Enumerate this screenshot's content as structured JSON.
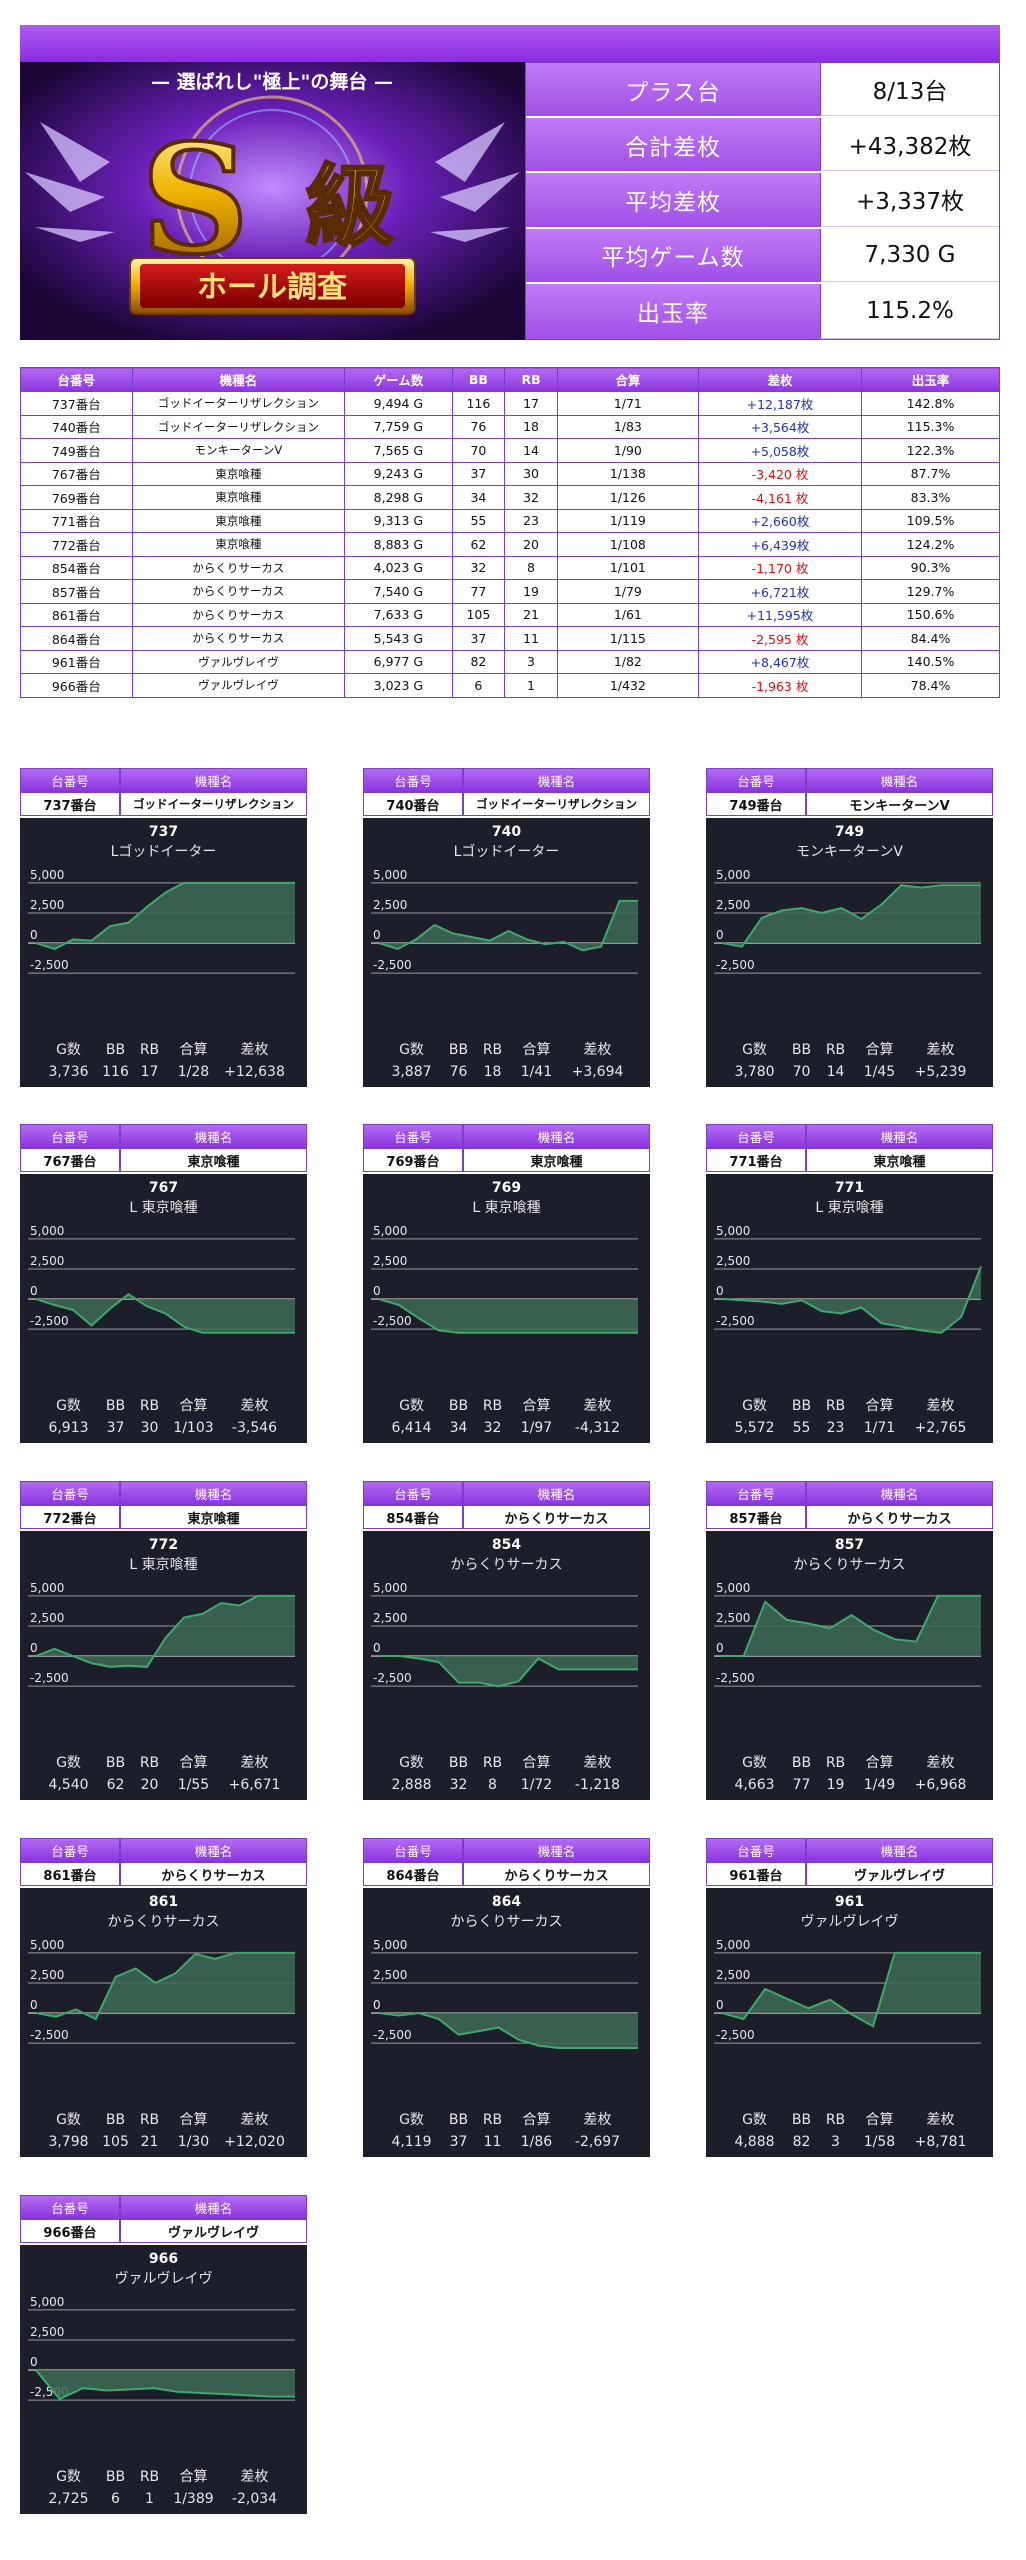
{
  "banner": {
    "subtitle": "— 選ばれし\"極上\"の舞台 —",
    "big_letter": "S",
    "kyu": "級",
    "ribbon": "ホール調査"
  },
  "summary": [
    {
      "label": "プラス台",
      "value": "8/13台"
    },
    {
      "label": "合計差枚",
      "value": "+43,382枚"
    },
    {
      "label": "平均差枚",
      "value": "+3,337枚"
    },
    {
      "label": "平均ゲーム数",
      "value": "7,330 G"
    },
    {
      "label": "出玉率",
      "value": "115.2%"
    }
  ],
  "table": {
    "headers": [
      "台番号",
      "機種名",
      "ゲーム数",
      "BB",
      "RB",
      "合算",
      "差枚",
      "出玉率"
    ],
    "rows": [
      [
        "737番台",
        "ゴッドイーターリザレクション",
        "9,494 G",
        "116",
        "17",
        "1/71",
        "+12,187枚",
        "142.8%"
      ],
      [
        "740番台",
        "ゴッドイーターリザレクション",
        "7,759 G",
        "76",
        "18",
        "1/83",
        "+3,564枚",
        "115.3%"
      ],
      [
        "749番台",
        "モンキーターンV",
        "7,565 G",
        "70",
        "14",
        "1/90",
        "+5,058枚",
        "122.3%"
      ],
      [
        "767番台",
        "東京喰種",
        "9,243 G",
        "37",
        "30",
        "1/138",
        "-3,420 枚",
        "87.7%"
      ],
      [
        "769番台",
        "東京喰種",
        "8,298 G",
        "34",
        "32",
        "1/126",
        "-4,161 枚",
        "83.3%"
      ],
      [
        "771番台",
        "東京喰種",
        "9,313 G",
        "55",
        "23",
        "1/119",
        "+2,660枚",
        "109.5%"
      ],
      [
        "772番台",
        "東京喰種",
        "8,883 G",
        "62",
        "20",
        "1/108",
        "+6,439枚",
        "124.2%"
      ],
      [
        "854番台",
        "からくりサーカス",
        "4,023 G",
        "32",
        "8",
        "1/101",
        "-1,170 枚",
        "90.3%"
      ],
      [
        "857番台",
        "からくりサーカス",
        "7,540 G",
        "77",
        "19",
        "1/79",
        "+6,721枚",
        "129.7%"
      ],
      [
        "861番台",
        "からくりサーカス",
        "7,633 G",
        "105",
        "21",
        "1/61",
        "+11,595枚",
        "150.6%"
      ],
      [
        "864番台",
        "からくりサーカス",
        "5,543 G",
        "37",
        "11",
        "1/115",
        "-2,595 枚",
        "84.4%"
      ],
      [
        "961番台",
        "ヴァルヴレイヴ",
        "6,977 G",
        "82",
        "3",
        "1/82",
        "+8,467枚",
        "140.5%"
      ],
      [
        "966番台",
        "ヴァルヴレイヴ",
        "3,023 G",
        "6",
        "1",
        "1/432",
        "-1,963 枚",
        "78.4%"
      ]
    ]
  },
  "card_labels": {
    "unit_header": "台番号",
    "machine_header": "機種名",
    "foot_headers": [
      "G数",
      "BB",
      "RB",
      "合算",
      "差枚"
    ]
  },
  "colors": {
    "purple": "#8d36e0",
    "panel_bg": "#1c1f2a",
    "line": "#3fa86b",
    "fill": "#3e6b55",
    "positive": "#2233bb",
    "negative": "#dd1111"
  },
  "chart_data": [
    {
      "type": "area",
      "unit": "737番台",
      "machine": "ゴッドイーターリザレクション",
      "number": "737",
      "title": "Lゴッドイーター",
      "yticks": [
        "5,000",
        "2,500",
        "0",
        "-2,500"
      ],
      "ylim": [
        -2900,
        5400
      ],
      "values": [
        0,
        -500,
        300,
        200,
        1400,
        1700,
        3000,
        4200,
        5000,
        5000,
        5000,
        5000,
        5000,
        5000,
        5000
      ],
      "stats": [
        "3,736",
        "116",
        "17",
        "1/28",
        "+12,638"
      ]
    },
    {
      "type": "area",
      "unit": "740番台",
      "machine": "ゴッドイーターリザレクション",
      "number": "740",
      "title": "Lゴッドイーター",
      "yticks": [
        "5,000",
        "2,500",
        "0",
        "-2,500"
      ],
      "ylim": [
        -2900,
        5400
      ],
      "values": [
        0,
        -500,
        300,
        1500,
        800,
        500,
        200,
        1000,
        300,
        -100,
        100,
        -600,
        -300,
        3500,
        3500
      ],
      "stats": [
        "3,887",
        "76",
        "18",
        "1/41",
        "+3,694"
      ]
    },
    {
      "type": "area",
      "unit": "749番台",
      "machine": "モンキーターンV",
      "number": "749",
      "title": "モンキーターンV",
      "yticks": [
        "5,000",
        "2,500",
        "0",
        "-2,500"
      ],
      "ylim": [
        -2900,
        5400
      ],
      "values": [
        0,
        -300,
        2100,
        2700,
        2900,
        2500,
        2900,
        2000,
        3200,
        4800,
        4600,
        4800,
        4800,
        4800
      ],
      "stats": [
        "3,780",
        "70",
        "14",
        "1/45",
        "+5,239"
      ]
    },
    {
      "type": "area",
      "unit": "767番台",
      "machine": "東京喰種",
      "number": "767",
      "title": "L 東京喰種",
      "yticks": [
        "5,000",
        "2,500",
        "0",
        "-2,500"
      ],
      "ylim": [
        -2900,
        5400
      ],
      "values": [
        0,
        -500,
        -900,
        -2200,
        -800,
        400,
        -600,
        -1200,
        -2300,
        -2800,
        -2800,
        -2800,
        -2800,
        -2800,
        -2800
      ],
      "stats": [
        "6,913",
        "37",
        "30",
        "1/103",
        "-3,546"
      ]
    },
    {
      "type": "area",
      "unit": "769番台",
      "machine": "東京喰種",
      "number": "769",
      "title": "L 東京喰種",
      "yticks": [
        "5,000",
        "2,500",
        "0",
        "-2,500"
      ],
      "ylim": [
        -2900,
        5400
      ],
      "values": [
        0,
        -500,
        -1600,
        -2600,
        -2800,
        -2800,
        -2800,
        -2800,
        -2800,
        -2800,
        -2800,
        -2800,
        -2800,
        -2800
      ],
      "stats": [
        "6,414",
        "34",
        "32",
        "1/97",
        "-4,312"
      ]
    },
    {
      "type": "area",
      "unit": "771番台",
      "machine": "東京喰種",
      "number": "771",
      "title": "L 東京喰種",
      "yticks": [
        "5,000",
        "2,500",
        "0",
        "-2,500"
      ],
      "ylim": [
        -2900,
        5400
      ],
      "values": [
        0,
        -100,
        -200,
        -400,
        -100,
        -1000,
        -1200,
        -700,
        -2000,
        -2300,
        -2600,
        -2800,
        -1500,
        2700
      ],
      "stats": [
        "5,572",
        "55",
        "23",
        "1/71",
        "+2,765"
      ]
    },
    {
      "type": "area",
      "unit": "772番台",
      "machine": "東京喰種",
      "number": "772",
      "title": "L 東京喰種",
      "yticks": [
        "5,000",
        "2,500",
        "0",
        "-2,500"
      ],
      "ylim": [
        -2900,
        5400
      ],
      "values": [
        0,
        600,
        0,
        -600,
        -900,
        -800,
        -900,
        1500,
        3200,
        3500,
        4400,
        4200,
        5000,
        5000,
        5000
      ],
      "stats": [
        "4,540",
        "62",
        "20",
        "1/55",
        "+6,671"
      ]
    },
    {
      "type": "area",
      "unit": "854番台",
      "machine": "からくりサーカス",
      "number": "854",
      "title": "からくりサーカス",
      "yticks": [
        "5,000",
        "2,500",
        "0",
        "-2,500"
      ],
      "ylim": [
        -2900,
        5400
      ],
      "values": [
        0,
        0,
        -200,
        -500,
        -2200,
        -2200,
        -2500,
        -2100,
        -200,
        -1100,
        -1100,
        -1100,
        -1100,
        -1100
      ],
      "stats": [
        "2,888",
        "32",
        "8",
        "1/72",
        "-1,218"
      ]
    },
    {
      "type": "area",
      "unit": "857番台",
      "machine": "からくりサーカス",
      "number": "857",
      "title": "からくりサーカス",
      "yticks": [
        "5,000",
        "2,500",
        "0",
        "-2,500"
      ],
      "ylim": [
        -2900,
        5400
      ],
      "values": [
        0,
        0,
        4500,
        3000,
        2700,
        2300,
        3400,
        2200,
        1400,
        1200,
        5000,
        5000,
        5000
      ],
      "stats": [
        "4,663",
        "77",
        "19",
        "1/49",
        "+6,968"
      ]
    },
    {
      "type": "area",
      "unit": "861番台",
      "machine": "からくりサーカス",
      "number": "861",
      "title": "からくりサーカス",
      "yticks": [
        "5,000",
        "2,500",
        "0",
        "-2,500"
      ],
      "ylim": [
        -2900,
        5400
      ],
      "values": [
        0,
        -300,
        300,
        -500,
        3000,
        3700,
        2500,
        3300,
        4900,
        4500,
        5000,
        5000,
        5000,
        5000
      ],
      "stats": [
        "3,798",
        "105",
        "21",
        "1/30",
        "+12,020"
      ]
    },
    {
      "type": "area",
      "unit": "864番台",
      "machine": "からくりサーカス",
      "number": "864",
      "title": "からくりサーカス",
      "yticks": [
        "5,000",
        "2,500",
        "0",
        "-2,500"
      ],
      "ylim": [
        -2900,
        5400
      ],
      "values": [
        0,
        -200,
        0,
        -500,
        -1800,
        -1500,
        -1200,
        -2200,
        -2700,
        -3100,
        -3100,
        -3100,
        -3100,
        -3100
      ],
      "stats": [
        "4,119",
        "37",
        "11",
        "1/86",
        "-2,697"
      ]
    },
    {
      "type": "area",
      "unit": "961番台",
      "machine": "ヴァルヴレイヴ",
      "number": "961",
      "title": "ヴァルヴレイヴ",
      "yticks": [
        "5,000",
        "2,500",
        "0",
        "-2,500"
      ],
      "ylim": [
        -2900,
        5400
      ],
      "values": [
        0,
        -500,
        2000,
        1200,
        400,
        1100,
        -100,
        -1100,
        5000,
        5000,
        5000,
        5000,
        5000
      ],
      "stats": [
        "4,888",
        "82",
        "3",
        "1/58",
        "+8,781"
      ]
    },
    {
      "type": "area",
      "unit": "966番台",
      "machine": "ヴァルヴレイヴ",
      "number": "966",
      "title": "ヴァルヴレイヴ",
      "yticks": [
        "5,000",
        "2,500",
        "0",
        "-2,500"
      ],
      "ylim": [
        -2900,
        5400
      ],
      "values": [
        0,
        -2400,
        -1500,
        -1700,
        -1600,
        -1500,
        -1800,
        -1900,
        -2000,
        -2100,
        -2200,
        -2200
      ],
      "stats": [
        "2,725",
        "6",
        "1",
        "1/389",
        "-2,034"
      ]
    }
  ]
}
